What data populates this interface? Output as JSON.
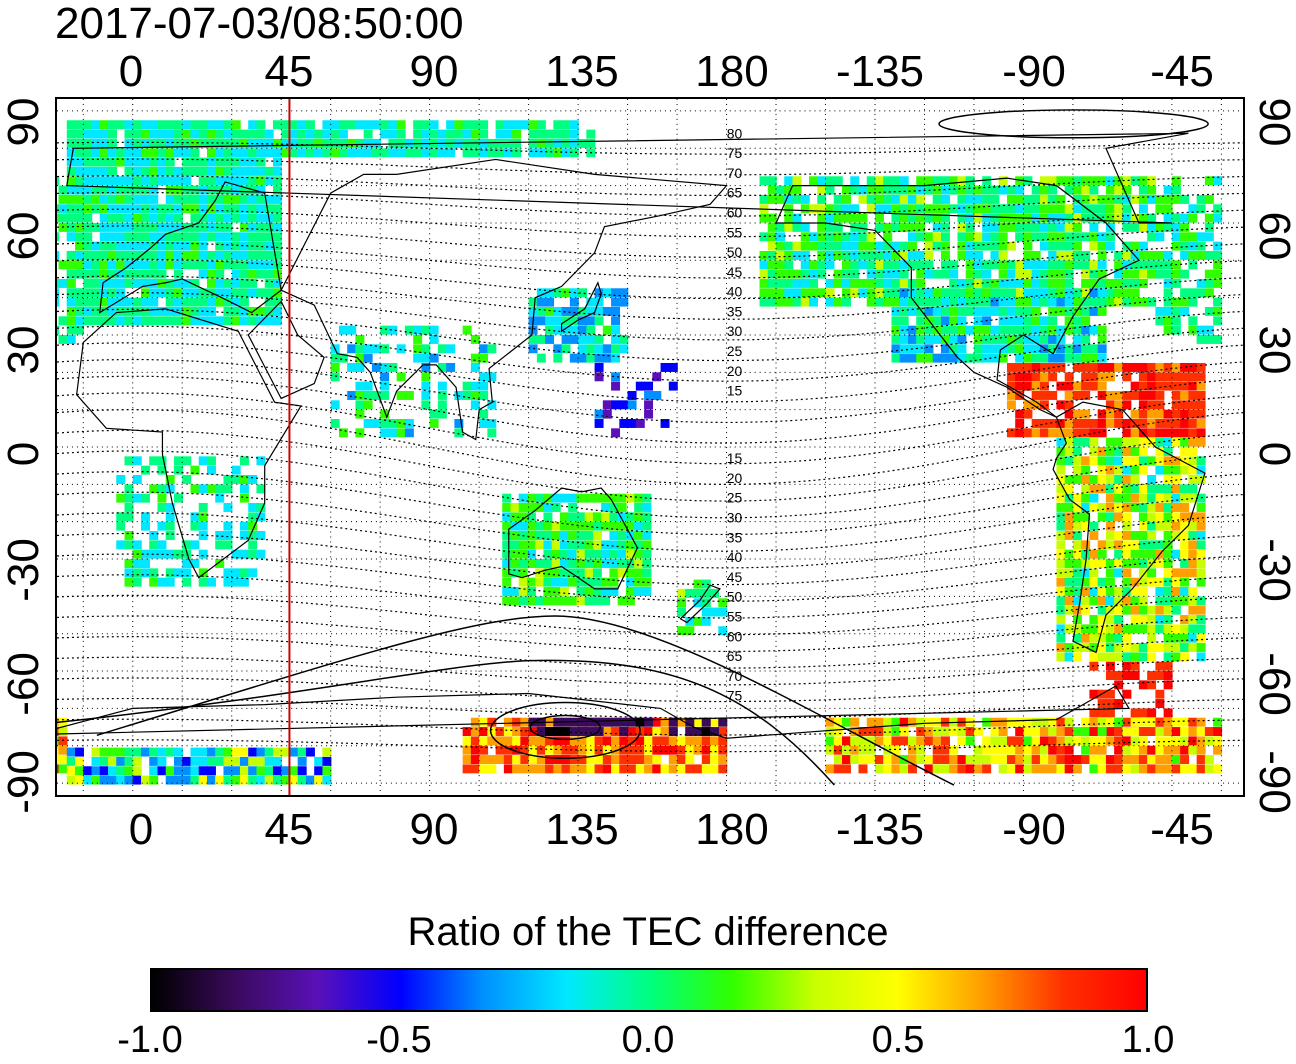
{
  "title": "2017-07-03/08:50:00",
  "x_ticks_top": [
    "0",
    "45",
    "90",
    "135",
    "180",
    "-135",
    "-90",
    "-45"
  ],
  "x_ticks_bottom": [
    "0",
    "45",
    "90",
    "135",
    "180",
    "-135",
    "-90",
    "-45"
  ],
  "y_ticks_left": [
    "90",
    "60",
    "30",
    "0",
    "-30",
    "-60",
    "-90"
  ],
  "y_ticks_right": [
    "90",
    "60",
    "30",
    "0",
    "-30",
    "-60",
    "-90"
  ],
  "mlat_labels_north": [
    "80",
    "75",
    "70",
    "65",
    "60",
    "55",
    "50",
    "45",
    "40",
    "35",
    "30",
    "25",
    "20",
    "15"
  ],
  "mlat_labels_south": [
    "15",
    "20",
    "25",
    "30",
    "35",
    "40",
    "45",
    "50",
    "55",
    "60",
    "65",
    "70",
    "75"
  ],
  "colorbar": {
    "title": "Ratio of the TEC difference",
    "labels": [
      "-1.0",
      "-0.5",
      "0.0",
      "0.5",
      "1.0"
    ],
    "min": -1.0,
    "max": 1.0,
    "colors": [
      "#000000",
      "#3a0a5c",
      "#5a10b8",
      "#0000ff",
      "#0090ff",
      "#00e8ff",
      "#00ff80",
      "#30ff00",
      "#c8ff00",
      "#ffff00",
      "#ffa000",
      "#ff3000",
      "#ff0000"
    ]
  },
  "map": {
    "projection": "equirectangular",
    "lon_center": 150,
    "lat_range": [
      -90,
      90
    ],
    "terminator_longitude": 47.5,
    "terminator_color": "#cc0000"
  }
}
